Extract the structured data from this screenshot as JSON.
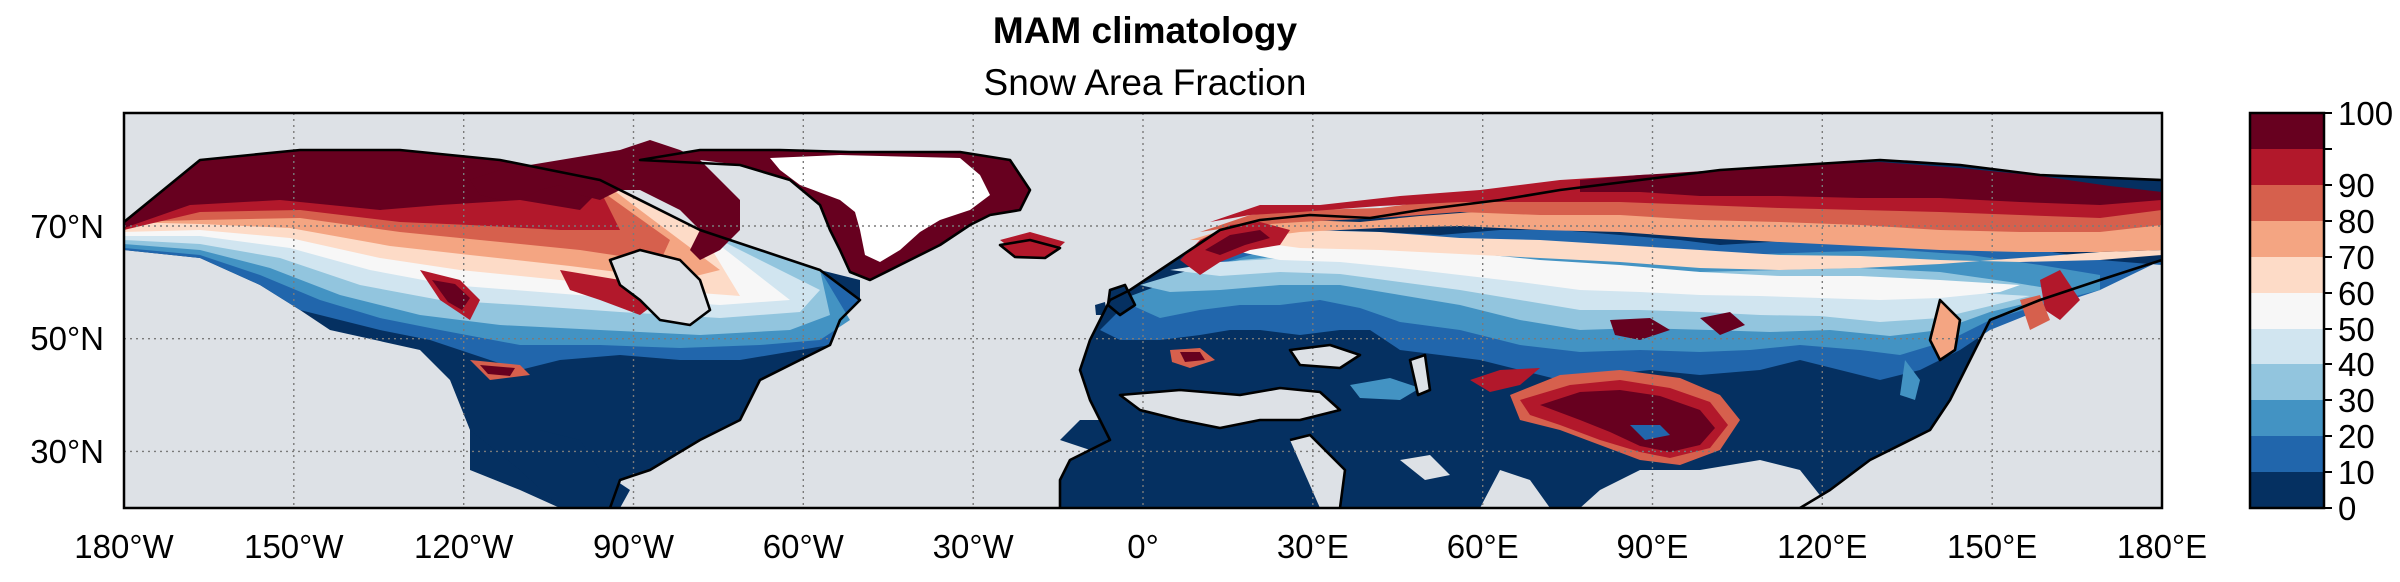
{
  "title": "MAM climatology",
  "subtitle": "Snow Area Fraction",
  "map": {
    "projection": "PlateCarree",
    "lon_range": [
      -180,
      180
    ],
    "lat_range": [
      20,
      90
    ],
    "x_ticks": [
      "180°W",
      "150°W",
      "120°W",
      "90°W",
      "60°W",
      "30°W",
      "0°",
      "30°E",
      "60°E",
      "90°E",
      "120°E",
      "150°E",
      "180°E"
    ],
    "y_ticks": [
      "70°N",
      "50°N",
      "30°N"
    ],
    "gridlines": "dotted",
    "ocean_color": "#dde1e6",
    "no_data_color": "#ffffff"
  },
  "colorbar": {
    "ticks": [
      "0",
      "10",
      "20",
      "30",
      "40",
      "50",
      "60",
      "70",
      "80",
      "90",
      "100"
    ],
    "colors": [
      "#053061",
      "#2166ac",
      "#4393c3",
      "#92c5de",
      "#d1e5f0",
      "#f7f7f7",
      "#fddbc7",
      "#f4a582",
      "#d6604d",
      "#b2182b",
      "#67001f"
    ],
    "cmap": "RdBu_r"
  },
  "colors": {
    "c0": "#053061",
    "c10": "#2166ac",
    "c20": "#4393c3",
    "c30": "#92c5de",
    "c40": "#d1e5f0",
    "c50": "#f7f7f7",
    "c60": "#fddbc7",
    "c70": "#f4a582",
    "c80": "#d6604d",
    "c90": "#b2182b",
    "c100": "#67001f"
  }
}
